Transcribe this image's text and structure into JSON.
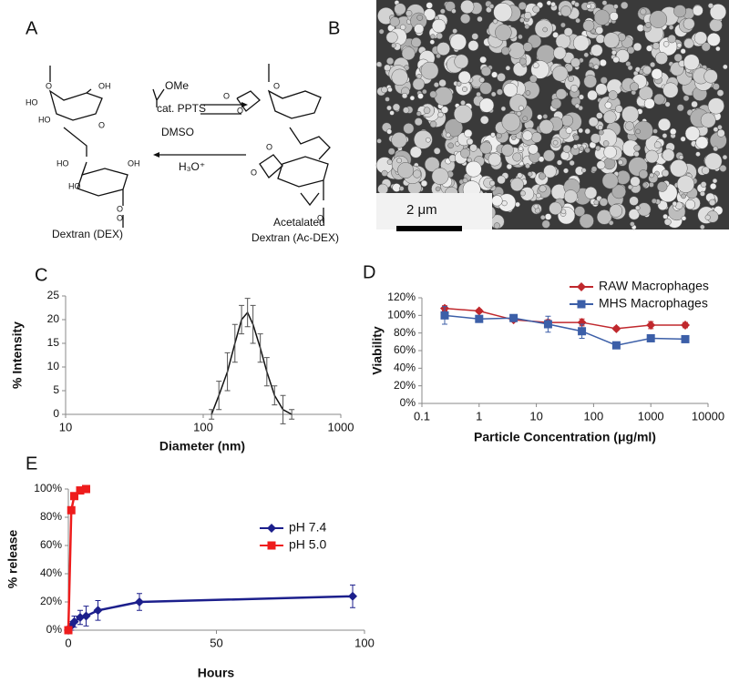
{
  "scheme": {
    "panel": "A",
    "reagent_top": "OMe",
    "catalyst": "cat. PPTS",
    "solvent": "DMSO",
    "reverse": "H₃O⁺",
    "left_name": "Dextran (DEX)",
    "right_name_1": "Acetalated",
    "right_name_2": "Dextran (Ac-DEX)",
    "structure_labels": [
      "O",
      "HO",
      "HO",
      "OH",
      "O",
      "HO",
      "HO",
      "OH",
      "O",
      "O",
      "O",
      "O",
      "O",
      "O",
      "O",
      "O"
    ]
  },
  "micrograph": {
    "panel": "B",
    "scale_bar": "2 μm"
  },
  "chart_data": [
    {
      "type": "line",
      "panel": "C",
      "xlabel": "Diameter (nm)",
      "ylabel": "% Intensity",
      "xscale": "log",
      "xlim": [
        10,
        1000
      ],
      "xticks": [
        10,
        100,
        1000
      ],
      "ylim": [
        0,
        25
      ],
      "yticks": [
        0,
        5,
        10,
        15,
        20,
        25
      ],
      "series": [
        {
          "color": "#111111",
          "marker": "none",
          "x": [
            115,
            130,
            150,
            170,
            190,
            210,
            230,
            260,
            290,
            330,
            380,
            440
          ],
          "values": [
            0,
            4,
            9,
            15,
            20,
            21.5,
            19,
            14,
            9,
            4,
            1,
            0
          ],
          "errors": [
            1,
            3,
            4,
            4,
            3,
            3,
            4,
            3,
            3,
            2,
            3,
            1
          ]
        }
      ]
    },
    {
      "type": "line",
      "panel": "D",
      "xlabel": "Particle Concentration (μg/ml)",
      "ylabel": "Viability",
      "xscale": "log",
      "xlim": [
        0.1,
        10000
      ],
      "xticks": [
        0.1,
        1,
        10,
        100,
        1000,
        10000
      ],
      "ylim": [
        0,
        120
      ],
      "yticks": [
        {
          "value": 0,
          "label": "0%"
        },
        {
          "value": 20,
          "label": "20%"
        },
        {
          "value": 40,
          "label": "40%"
        },
        {
          "value": 60,
          "label": "60%"
        },
        {
          "value": 80,
          "label": "80%"
        },
        {
          "value": 100,
          "label": "100%"
        },
        {
          "value": 120,
          "label": "120%"
        }
      ],
      "legend": "upper right",
      "series": [
        {
          "name": "RAW Macrophages",
          "color": "#c0282d",
          "marker": "diamond",
          "x": [
            0.25,
            1,
            4,
            16,
            62.5,
            250,
            1000,
            4000
          ],
          "values": [
            108,
            105,
            95,
            92,
            92,
            85,
            89,
            89
          ],
          "errors": [
            3,
            2,
            2,
            3,
            4,
            2,
            4,
            3
          ]
        },
        {
          "name": "MHS Macrophages",
          "color": "#3c5fa8",
          "marker": "square",
          "x": [
            0.25,
            1,
            4,
            16,
            62.5,
            250,
            1000,
            4000
          ],
          "values": [
            100,
            96,
            97,
            90,
            82,
            66,
            74,
            73
          ],
          "errors": [
            10,
            3,
            2,
            9,
            8,
            2,
            2,
            2
          ]
        }
      ]
    },
    {
      "type": "line",
      "panel": "E",
      "xlabel": "Hours",
      "ylabel": "% release",
      "xscale": "linear",
      "xlim": [
        0,
        100
      ],
      "xticks": [
        0,
        50,
        100
      ],
      "ylim": [
        0,
        100
      ],
      "yticks": [
        {
          "value": 0,
          "label": "0%"
        },
        {
          "value": 20,
          "label": "20%"
        },
        {
          "value": 40,
          "label": "40%"
        },
        {
          "value": 60,
          "label": "60%"
        },
        {
          "value": 80,
          "label": "80%"
        },
        {
          "value": 100,
          "label": "100%"
        }
      ],
      "legend": "center right",
      "series": [
        {
          "name": "pH 7.4",
          "color": "#1c1f8c",
          "marker": "diamond",
          "x": [
            0,
            1,
            2,
            4,
            6,
            10,
            24,
            96
          ],
          "values": [
            0,
            3,
            6,
            9,
            10,
            14,
            20,
            24
          ],
          "errors": [
            1,
            3,
            4,
            5,
            7,
            7,
            6,
            8
          ]
        },
        {
          "name": "pH 5.0",
          "color": "#ee1c1c",
          "marker": "square",
          "x": [
            0,
            1,
            2,
            4,
            6
          ],
          "values": [
            0,
            85,
            95,
            99,
            100
          ],
          "errors": [
            1,
            2,
            2,
            1,
            1
          ]
        }
      ]
    }
  ]
}
